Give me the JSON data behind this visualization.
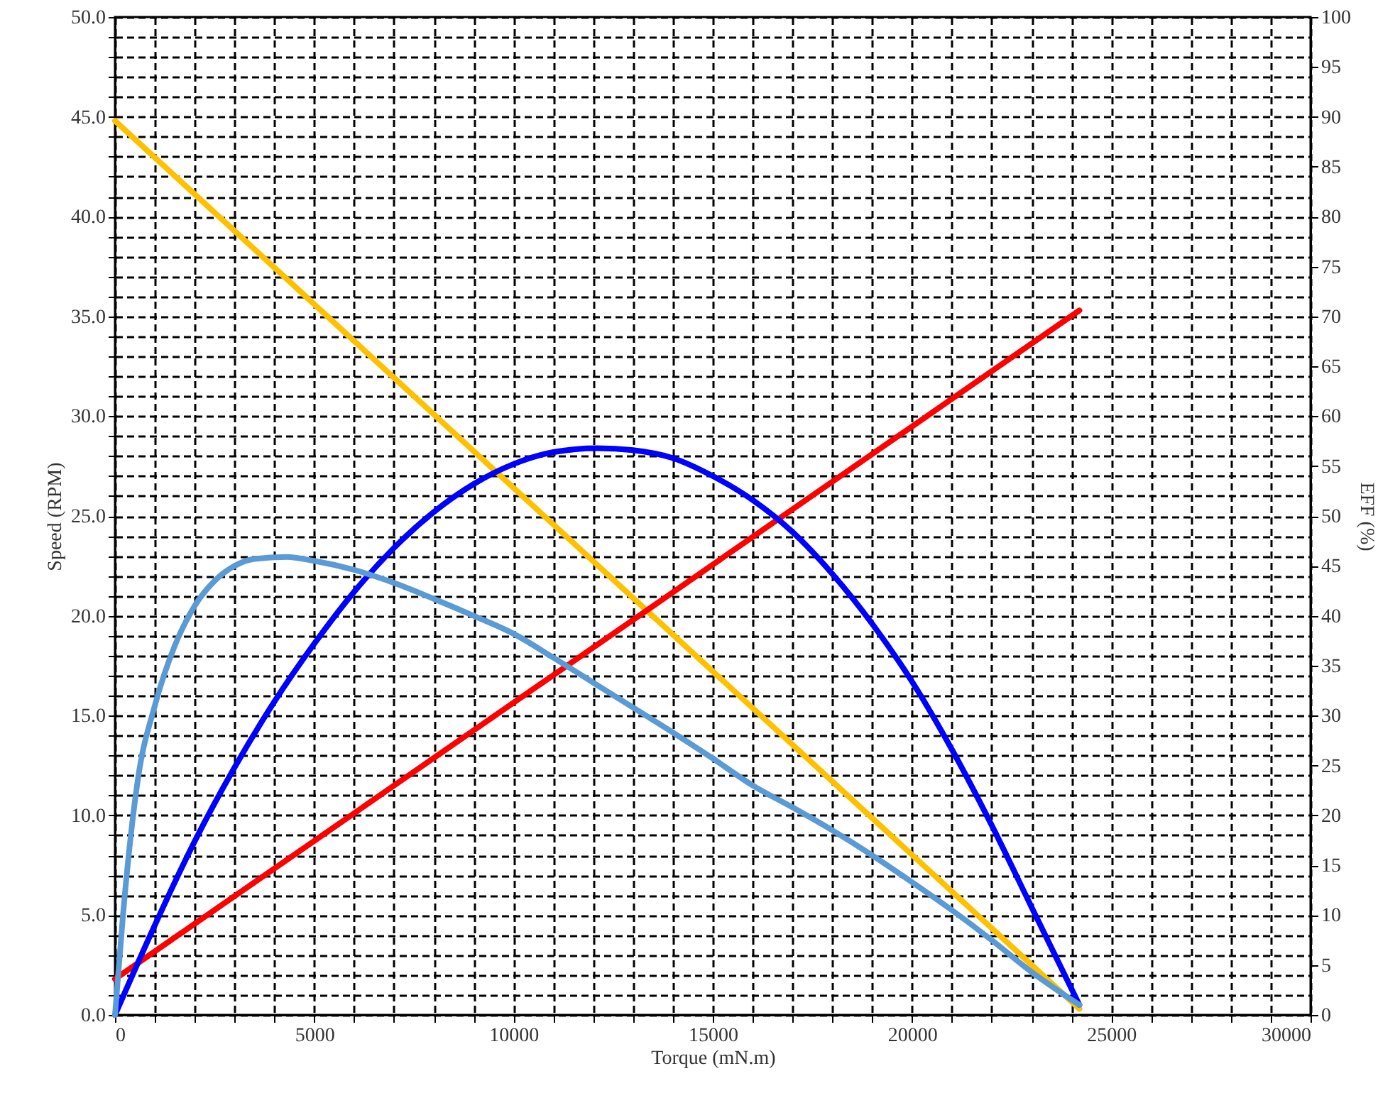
{
  "chart_data": {
    "type": "line",
    "xlabel": "Torque (mN.m)",
    "ylabel": "Speed (RPM)",
    "y2label": "EFF (%)",
    "grid": true,
    "xlim": [
      0,
      30000
    ],
    "xticks": [
      0,
      {
        "value": 1000,
        "label": null
      },
      {
        "value": 2000,
        "label": null
      },
      {
        "value": 3000,
        "label": null
      },
      {
        "value": 4000,
        "label": null
      },
      5000,
      {
        "value": 6000,
        "label": null
      },
      {
        "value": 7000,
        "label": null
      },
      {
        "value": 8000,
        "label": null
      },
      {
        "value": 9000,
        "label": null
      },
      10000,
      {
        "value": 11000,
        "label": null
      },
      {
        "value": 12000,
        "label": null
      },
      {
        "value": 13000,
        "label": null
      },
      {
        "value": 14000,
        "label": null
      },
      15000,
      {
        "value": 16000,
        "label": null
      },
      {
        "value": 17000,
        "label": null
      },
      {
        "value": 18000,
        "label": null
      },
      {
        "value": 19000,
        "label": null
      },
      20000,
      {
        "value": 21000,
        "label": null
      },
      {
        "value": 22000,
        "label": null
      },
      {
        "value": 23000,
        "label": null
      },
      {
        "value": 24000,
        "label": null
      },
      25000,
      {
        "value": 26000,
        "label": null
      },
      {
        "value": 27000,
        "label": null
      },
      {
        "value": 28000,
        "label": null
      },
      {
        "value": 29000,
        "label": null
      },
      30000
    ],
    "ylim": [
      0,
      50
    ],
    "yticks": [
      {
        "value": 0,
        "label": "0.0"
      },
      {
        "value": 1,
        "label": null
      },
      {
        "value": 2,
        "label": null
      },
      {
        "value": 3,
        "label": null
      },
      {
        "value": 4,
        "label": null
      },
      {
        "value": 5,
        "label": "5.0"
      },
      {
        "value": 6,
        "label": null
      },
      {
        "value": 7,
        "label": null
      },
      {
        "value": 8,
        "label": null
      },
      {
        "value": 9,
        "label": null
      },
      {
        "value": 10,
        "label": "10.0"
      },
      {
        "value": 11,
        "label": null
      },
      {
        "value": 12,
        "label": null
      },
      {
        "value": 13,
        "label": null
      },
      {
        "value": 14,
        "label": null
      },
      {
        "value": 15,
        "label": "15.0"
      },
      {
        "value": 16,
        "label": null
      },
      {
        "value": 17,
        "label": null
      },
      {
        "value": 18,
        "label": null
      },
      {
        "value": 19,
        "label": null
      },
      {
        "value": 20,
        "label": "20.0"
      },
      {
        "value": 21,
        "label": null
      },
      {
        "value": 22,
        "label": null
      },
      {
        "value": 23,
        "label": null
      },
      {
        "value": 24,
        "label": null
      },
      {
        "value": 25,
        "label": "25.0"
      },
      {
        "value": 26,
        "label": null
      },
      {
        "value": 27,
        "label": null
      },
      {
        "value": 28,
        "label": null
      },
      {
        "value": 29,
        "label": null
      },
      {
        "value": 30,
        "label": "30.0"
      },
      {
        "value": 31,
        "label": null
      },
      {
        "value": 32,
        "label": null
      },
      {
        "value": 33,
        "label": null
      },
      {
        "value": 34,
        "label": null
      },
      {
        "value": 35,
        "label": "35.0"
      },
      {
        "value": 36,
        "label": null
      },
      {
        "value": 37,
        "label": null
      },
      {
        "value": 38,
        "label": null
      },
      {
        "value": 39,
        "label": null
      },
      {
        "value": 40,
        "label": "40.0"
      },
      {
        "value": 41,
        "label": null
      },
      {
        "value": 42,
        "label": null
      },
      {
        "value": 43,
        "label": null
      },
      {
        "value": 44,
        "label": null
      },
      {
        "value": 45,
        "label": "45.0"
      },
      {
        "value": 46,
        "label": null
      },
      {
        "value": 47,
        "label": null
      },
      {
        "value": 48,
        "label": null
      },
      {
        "value": 49,
        "label": null
      },
      {
        "value": 50,
        "label": "50.0"
      }
    ],
    "y2lim": [
      0,
      100
    ],
    "y2ticks": [
      0,
      5,
      10,
      15,
      20,
      25,
      30,
      35,
      40,
      45,
      50,
      55,
      60,
      65,
      70,
      75,
      80,
      85,
      90,
      95,
      100
    ],
    "series": [
      {
        "color": "#ffc000",
        "x": [
          0,
          24200
        ],
        "values": [
          44.8,
          0.3
        ]
      },
      {
        "color": "#ff0000",
        "x": [
          0,
          24200
        ],
        "values": [
          1.8,
          35.3
        ]
      },
      {
        "color": "#0000ff",
        "x": [
          0,
          1000,
          2000,
          3000,
          4000,
          5000,
          6000,
          7000,
          8000,
          9000,
          10000,
          11000,
          12100,
          13000,
          14000,
          15000,
          16000,
          17000,
          18000,
          19000,
          20000,
          21000,
          22000,
          23000,
          24200
        ],
        "values": [
          0,
          4.5,
          8.7,
          12.4,
          15.7,
          18.6,
          21.2,
          23.4,
          25.2,
          26.6,
          27.6,
          28.2,
          28.4,
          28.3,
          27.9,
          27.0,
          25.8,
          24.2,
          22.1,
          19.6,
          16.7,
          13.3,
          9.5,
          5.4,
          0.5
        ]
      },
      {
        "color": "#5b9bd5",
        "axis": "y2",
        "x": [
          0,
          200,
          570,
          1000,
          1500,
          2000,
          2500,
          3000,
          3500,
          4300,
          5000,
          6000,
          7000,
          8000,
          9000,
          10000,
          11000,
          12000,
          13000,
          14000,
          15000,
          16000,
          17000,
          18000,
          19000,
          20000,
          21000,
          22000,
          23000,
          24200
        ],
        "values": [
          0,
          10,
          23.5,
          31,
          37,
          41,
          43.5,
          45,
          45.7,
          45.9,
          45.5,
          44.6,
          43.3,
          41.7,
          40.0,
          38.2,
          35.8,
          33.3,
          30.8,
          28.3,
          25.7,
          23.0,
          20.8,
          18.5,
          16.0,
          13.3,
          10.5,
          7.5,
          4.3,
          1.0
        ]
      }
    ]
  }
}
